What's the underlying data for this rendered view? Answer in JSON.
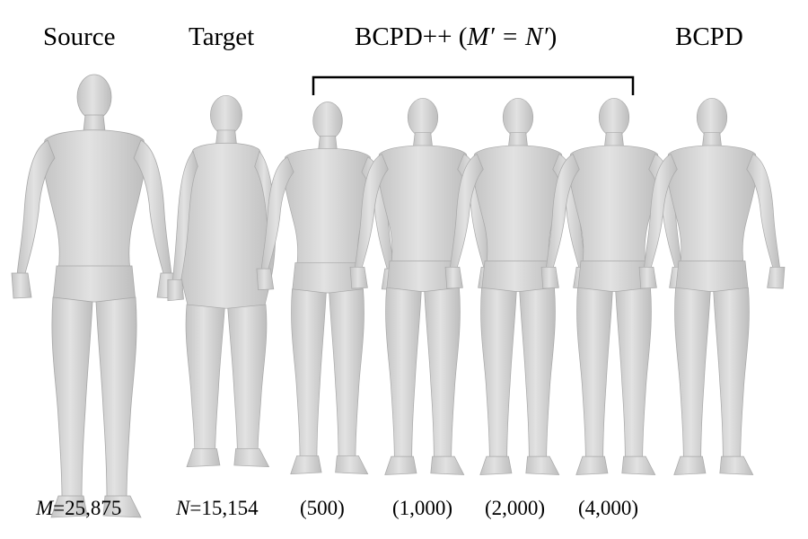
{
  "titles": {
    "source": "Source",
    "target": "Target",
    "bcpdpp_prefix": "BCPD++ (",
    "bcpdpp_math": "M′ = N′",
    "bcpdpp_suffix": ")",
    "bcpd": "BCPD"
  },
  "captions": {
    "source_var": "M",
    "source_value": "=25,875",
    "target_var": "N",
    "target_value": "=15,154",
    "bcpdpp_500": "(500)",
    "bcpdpp_1000": "(1,000)",
    "bcpdpp_2000": "(2,000)",
    "bcpdpp_4000": "(4,000)"
  },
  "colors": {
    "body_fill": "#dcdcdc",
    "body_shade": "#b8b8b8",
    "bracket": "#000000"
  }
}
